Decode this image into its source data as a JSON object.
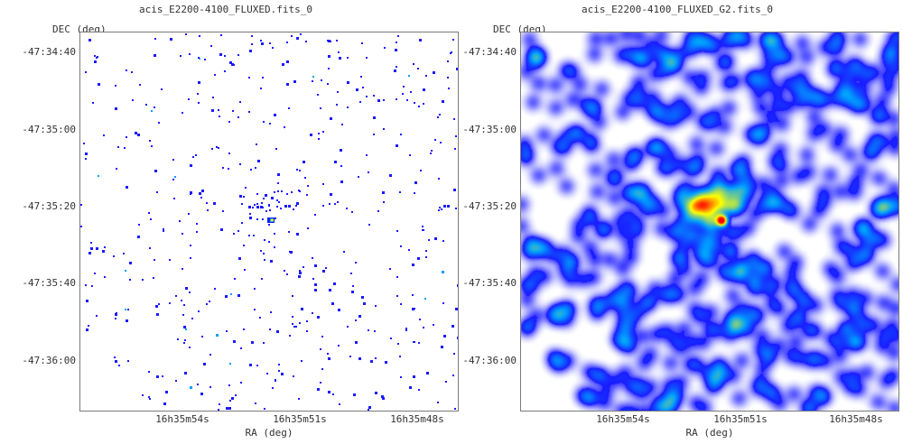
{
  "chart_data": [
    {
      "type": "heatmap",
      "title": "acis_E2200-4100_FLUXED.fits_0",
      "xlabel": "RA (deg)",
      "ylabel": "DEC (deg)",
      "x_ticks": [
        "16h35m54s",
        "16h35m51s",
        "16h35m48s"
      ],
      "y_ticks": [
        "-47:34:40",
        "-47:35:00",
        "-47:35:20",
        "-47:35:40",
        "-47:36:00"
      ],
      "style": "sparse single-pixel events",
      "source_position": {
        "ra": "16h35m51.6s",
        "dec": "-47:35:24"
      },
      "colormap": [
        "#ffffff",
        "#1a1aff",
        "#00a0ff",
        "#00c0c0",
        "#ffff00",
        "#ff0000"
      ]
    },
    {
      "type": "heatmap",
      "title": "acis_E2200-4100_FLUXED_G2.fits_0",
      "xlabel": "RA (deg)",
      "ylabel": "DEC (deg)",
      "x_ticks": [
        "16h35m54s",
        "16h35m51s",
        "16h35m48s"
      ],
      "y_ticks": [
        "-47:34:40",
        "-47:35:00",
        "-47:35:20",
        "-47:35:40",
        "-47:36:00"
      ],
      "style": "gaussian smoothed",
      "source_position": {
        "ra": "16h35m51.6s",
        "dec": "-47:35:24"
      },
      "colormap": [
        "#ffffff",
        "#1a1aff",
        "#00a0ff",
        "#00c0c0",
        "#ffff00",
        "#ff0000"
      ]
    }
  ]
}
